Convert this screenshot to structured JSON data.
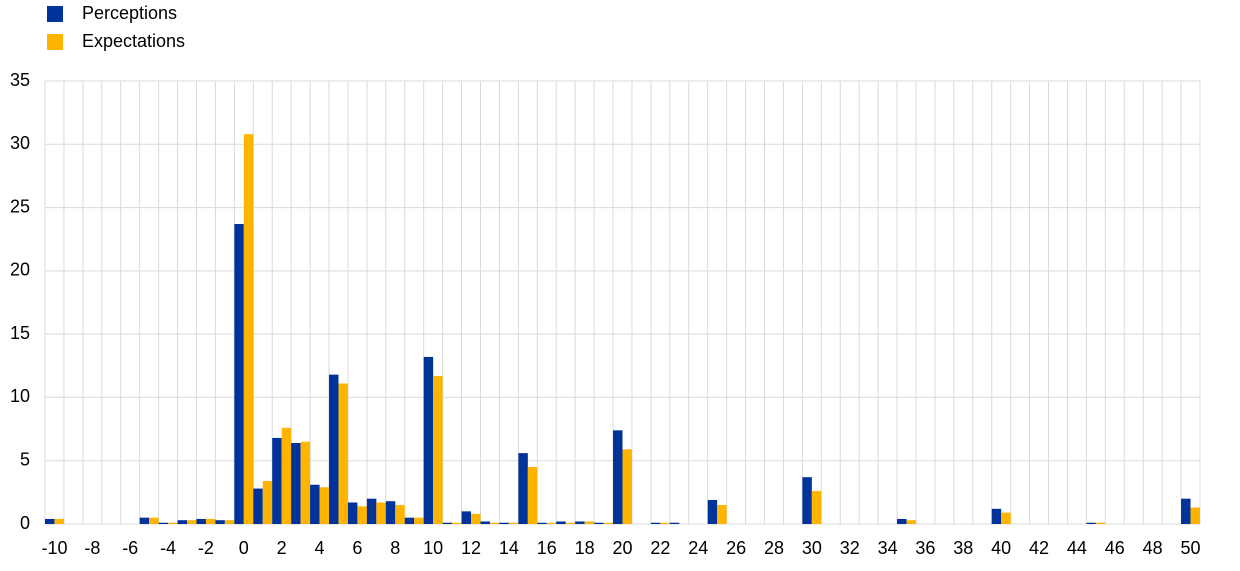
{
  "chart_data": {
    "type": "bar",
    "categories": [
      "-10",
      null,
      "-8",
      null,
      "-6",
      null,
      "-4",
      null,
      "-2",
      null,
      "0",
      null,
      "2",
      null,
      "4",
      null,
      "6",
      null,
      "8",
      null,
      "10",
      null,
      "12",
      null,
      "14",
      null,
      "16",
      null,
      "18",
      null,
      "20",
      null,
      "22",
      null,
      "24",
      null,
      "26",
      null,
      "28",
      null,
      "30",
      null,
      "32",
      null,
      "34",
      null,
      "36",
      null,
      "38",
      null,
      "40",
      null,
      "42",
      null,
      "44",
      null,
      "46",
      null,
      "48",
      null,
      "50"
    ],
    "series": [
      {
        "name": "Perceptions",
        "color": "#003399",
        "values": [
          0.4,
          0,
          0,
          0,
          0,
          0.5,
          0.1,
          0.3,
          0.4,
          0.3,
          23.7,
          2.8,
          6.8,
          6.4,
          3.1,
          11.8,
          1.7,
          2.0,
          1.8,
          0.5,
          13.2,
          0.1,
          1.0,
          0.2,
          0.1,
          5.6,
          0.1,
          0.2,
          0.2,
          0.1,
          7.4,
          0,
          0.1,
          0.1,
          0,
          1.9,
          0,
          0,
          0,
          0,
          3.7,
          0,
          0,
          0,
          0,
          0.4,
          0,
          0,
          0,
          0,
          1.2,
          0,
          0,
          0,
          0,
          0.1,
          0,
          0,
          0,
          0,
          2.0
        ]
      },
      {
        "name": "Expectations",
        "color": "#ffb400",
        "values": [
          0.4,
          0,
          0,
          0,
          0,
          0.5,
          0.1,
          0.3,
          0.4,
          0.3,
          30.8,
          3.4,
          7.6,
          6.5,
          2.9,
          11.1,
          1.4,
          1.7,
          1.5,
          0.5,
          11.7,
          0.1,
          0.8,
          0.1,
          0.1,
          4.5,
          0.1,
          0.1,
          0.2,
          0.1,
          5.9,
          0,
          0.1,
          0,
          0,
          1.5,
          0,
          0,
          0,
          0,
          2.6,
          0,
          0,
          0,
          0,
          0.3,
          0,
          0,
          0,
          0,
          0.9,
          0,
          0,
          0,
          0,
          0.1,
          0,
          0,
          0,
          0,
          1.3
        ]
      }
    ],
    "ylim": [
      0,
      35
    ],
    "yticks": [
      0,
      5,
      10,
      15,
      20,
      25,
      30,
      35
    ],
    "grid": true,
    "legend": "top-left"
  }
}
